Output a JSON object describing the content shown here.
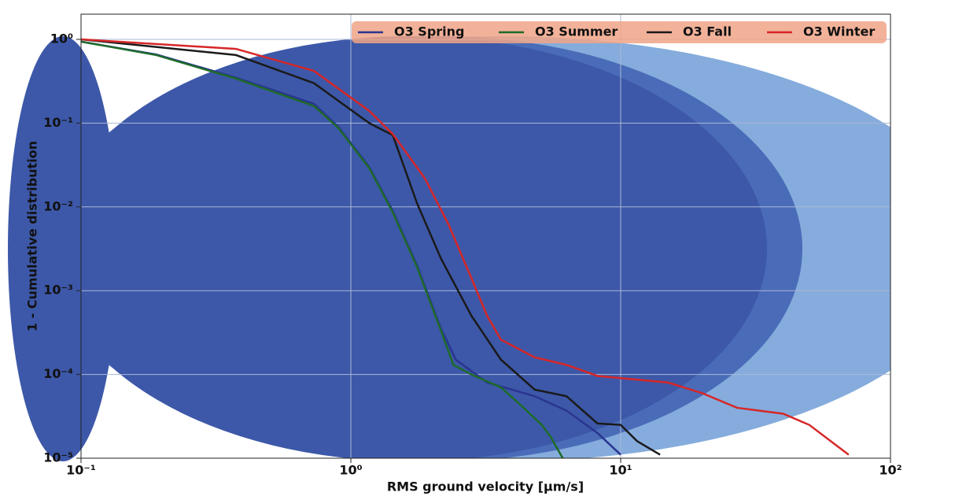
{
  "chart_data": {
    "type": "line",
    "xlabel": "RMS ground velocity [μm/s]",
    "ylabel": "1 - Cumulative distribution",
    "xlog": true,
    "ylog": true,
    "grid": true,
    "legend": "upper right",
    "xlim": [
      0.1,
      100
    ],
    "ylim": [
      1e-05,
      1
    ],
    "xticks": [
      {
        "value": 0.1,
        "label": "10⁻¹"
      },
      {
        "value": 1,
        "label": "10⁰"
      },
      {
        "value": 10,
        "label": "10¹"
      },
      {
        "value": 100,
        "label": "10²"
      }
    ],
    "yticks": [
      {
        "value": 1e-05,
        "label": "10⁻⁵"
      },
      {
        "value": 0.0001,
        "label": "10⁻⁴"
      },
      {
        "value": 0.001,
        "label": "10⁻³"
      },
      {
        "value": 0.01,
        "label": "10⁻²"
      },
      {
        "value": 0.1,
        "label": "10⁻¹"
      },
      {
        "value": 1,
        "label": "10⁰"
      }
    ],
    "series": [
      {
        "name": "O3 Spring",
        "color": "#2a3590",
        "x": [
          0.1,
          0.19,
          0.375,
          0.73,
          0.9,
          1.17,
          1.43,
          1.76,
          2.16,
          2.45,
          3.2,
          4.8,
          6.3,
          8.2,
          10
        ],
        "values": [
          0.94,
          0.66,
          0.35,
          0.17,
          0.09,
          0.03,
          0.009,
          0.002,
          0.00035,
          0.00015,
          8e-05,
          5.5e-05,
          3.7e-05,
          2e-05,
          1.1e-05
        ]
      },
      {
        "name": "O3 Summer",
        "color": "#1e6b2a",
        "x": [
          0.1,
          0.19,
          0.375,
          0.73,
          0.9,
          1.17,
          1.43,
          1.76,
          2.16,
          2.4,
          2.8,
          3.6,
          4.2,
          5.1,
          5.5,
          6.1
        ],
        "values": [
          0.94,
          0.65,
          0.34,
          0.16,
          0.087,
          0.029,
          0.0086,
          0.0019,
          0.00033,
          0.00013,
          0.0001,
          7e-05,
          4.5e-05,
          2.5e-05,
          1.8e-05,
          1e-05
        ]
      },
      {
        "name": "O3 Fall",
        "color": "#1a1a1a",
        "x": [
          0.1,
          0.375,
          0.73,
          1.17,
          1.43,
          1.76,
          2.16,
          2.8,
          3.6,
          4.8,
          6.3,
          8.2,
          10,
          11.5,
          14
        ],
        "values": [
          1.0,
          0.65,
          0.3,
          0.1,
          0.072,
          0.011,
          0.0024,
          0.0005,
          0.00015,
          6.6e-05,
          5.5e-05,
          2.6e-05,
          2.5e-05,
          1.6e-05,
          1.1e-05
        ]
      },
      {
        "name": "O3 Winter",
        "color": "#d62728",
        "x": [
          0.1,
          0.375,
          0.73,
          1.17,
          1.43,
          1.88,
          2.3,
          2.8,
          3.2,
          3.6,
          4.8,
          6.3,
          8.2,
          15,
          20,
          27,
          40,
          50,
          70
        ],
        "values": [
          1.0,
          0.77,
          0.42,
          0.14,
          0.074,
          0.022,
          0.0062,
          0.0014,
          0.0005,
          0.00026,
          0.00016,
          0.00013,
          9.6e-05,
          8e-05,
          6e-05,
          4e-05,
          3.4e-05,
          2.5e-05,
          1.1e-05
        ]
      }
    ]
  }
}
